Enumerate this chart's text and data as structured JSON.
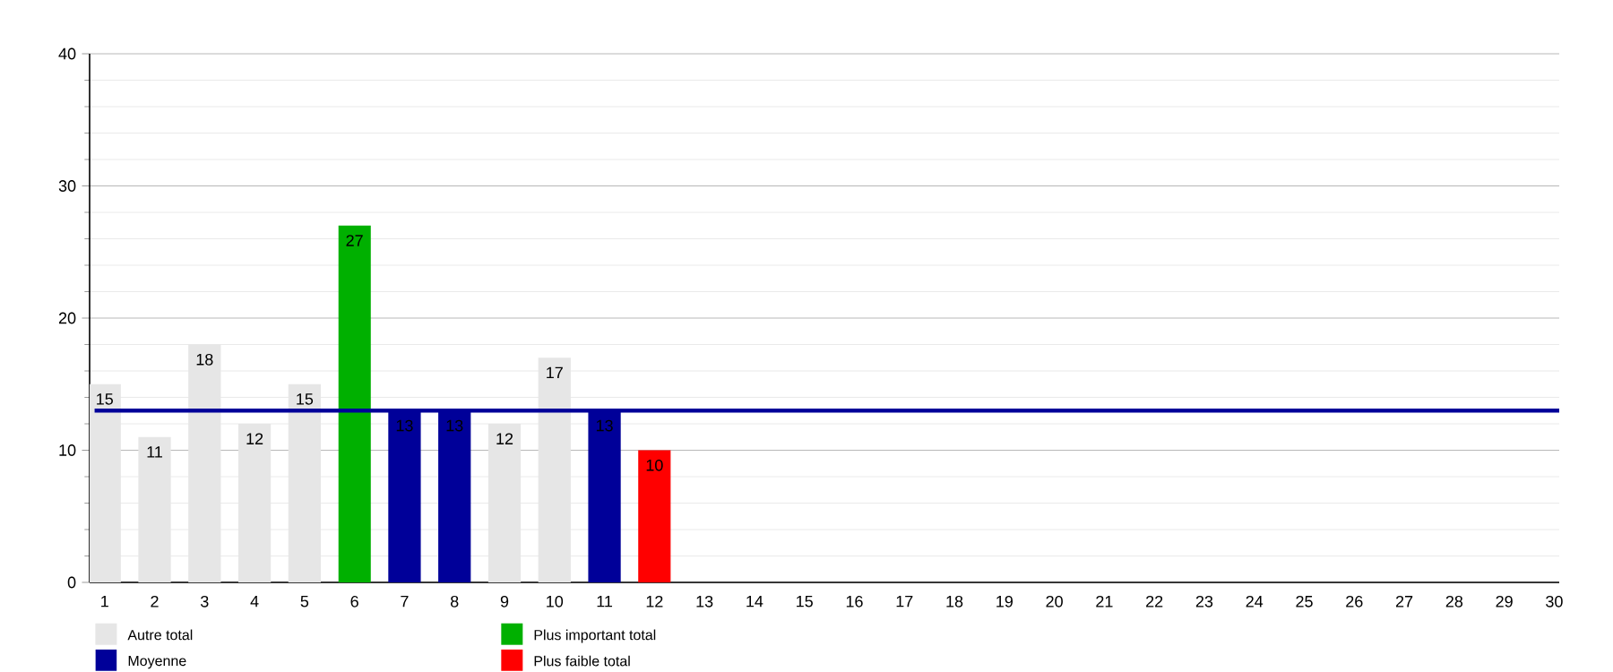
{
  "chart_data": {
    "type": "bar",
    "categories": [
      "1",
      "2",
      "3",
      "4",
      "5",
      "6",
      "7",
      "8",
      "9",
      "10",
      "11",
      "12",
      "13",
      "14",
      "15",
      "16",
      "17",
      "18",
      "19",
      "20",
      "21",
      "22",
      "23",
      "24",
      "25",
      "26",
      "27",
      "28",
      "29",
      "30"
    ],
    "series": [
      {
        "name": "Autre total",
        "color": "#e6e6e6",
        "values": [
          15,
          11,
          18,
          12,
          15,
          null,
          null,
          null,
          12,
          17,
          null,
          null,
          null,
          null,
          null,
          null,
          null,
          null,
          null,
          null,
          null,
          null,
          null,
          null,
          null,
          null,
          null,
          null,
          null,
          null
        ]
      },
      {
        "name": "Plus important total",
        "color": "#00b000",
        "values": [
          null,
          null,
          null,
          null,
          null,
          27,
          null,
          null,
          null,
          null,
          null,
          null,
          null,
          null,
          null,
          null,
          null,
          null,
          null,
          null,
          null,
          null,
          null,
          null,
          null,
          null,
          null,
          null,
          null,
          null
        ]
      },
      {
        "name": "Moyenne",
        "color": "#000099",
        "values": [
          null,
          null,
          null,
          null,
          null,
          null,
          13,
          13,
          null,
          null,
          13,
          null,
          null,
          null,
          null,
          null,
          null,
          null,
          null,
          null,
          null,
          null,
          null,
          null,
          null,
          null,
          null,
          null,
          null,
          null
        ]
      },
      {
        "name": "Plus faible total",
        "color": "#ff0000",
        "values": [
          null,
          null,
          null,
          null,
          null,
          null,
          null,
          null,
          null,
          null,
          null,
          10,
          null,
          null,
          null,
          null,
          null,
          null,
          null,
          null,
          null,
          null,
          null,
          null,
          null,
          null,
          null,
          null,
          null,
          null
        ]
      }
    ],
    "ylim": [
      0,
      40
    ],
    "yticks": [
      0,
      10,
      20,
      30,
      40
    ],
    "ref_lines": [
      {
        "axis": "y",
        "value": 13,
        "color": "#000099"
      }
    ],
    "data_labels": true,
    "grid": "y",
    "legend": "bottom"
  }
}
